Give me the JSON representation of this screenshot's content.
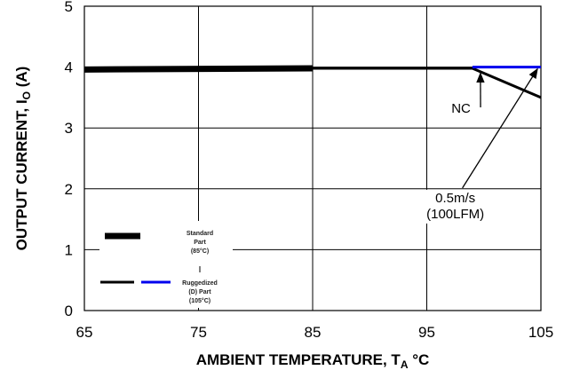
{
  "chart_data": {
    "type": "line",
    "title": "",
    "xlabel": "AMBIENT TEMPERATURE, T",
    "xlabel_sub": "A",
    "xlabel_unit": " °C",
    "ylabel": "OUTPUT CURRENT, I",
    "ylabel_sub": "O",
    "ylabel_unit": " (A)",
    "xlim": [
      65,
      105
    ],
    "ylim": [
      0,
      5
    ],
    "x_ticks": [
      65,
      75,
      85,
      95,
      105
    ],
    "x_tick_labels": [
      "65",
      "75",
      "85",
      "95",
      "105"
    ],
    "y_ticks": [
      0,
      1,
      2,
      3,
      4,
      5
    ],
    "y_tick_labels": [
      "0",
      "1",
      "2",
      "3",
      "4",
      "5"
    ],
    "grid": true,
    "series": [
      {
        "name": "Standard Part (85°C)",
        "color": "#000000",
        "style": "thick",
        "points": [
          [
            65,
            3.96
          ],
          [
            85,
            3.98
          ]
        ]
      },
      {
        "name": "Ruggedized (D) Part (105°C) NC",
        "color": "#000000",
        "style": "thin",
        "points": [
          [
            85,
            3.98
          ],
          [
            99,
            3.98
          ],
          [
            105,
            3.5
          ]
        ]
      },
      {
        "name": "Ruggedized (D) Part (105°C) 0.5m/s",
        "color": "#0000ee",
        "style": "thin",
        "points": [
          [
            99,
            4.0
          ],
          [
            105,
            4.0
          ]
        ]
      }
    ],
    "annotations": [
      {
        "id": "nc",
        "lines": [
          "NC"
        ],
        "text_at": [
          98,
          3.25
        ],
        "arrow_to": [
          99.7,
          3.9
        ]
      },
      {
        "id": "flow",
        "lines": [
          "0.5m/s",
          "(100LFM)"
        ],
        "text_at": [
          97.5,
          1.78
        ],
        "arrow_to": [
          104.7,
          3.97
        ]
      }
    ],
    "legend": {
      "position": "bottom-left",
      "entries": [
        {
          "lines": [
            "Standard",
            "Part",
            "(85°C)"
          ]
        },
        {
          "lines": [
            "Ruggedized",
            "(D) Part",
            "(105°C)"
          ]
        }
      ]
    }
  }
}
